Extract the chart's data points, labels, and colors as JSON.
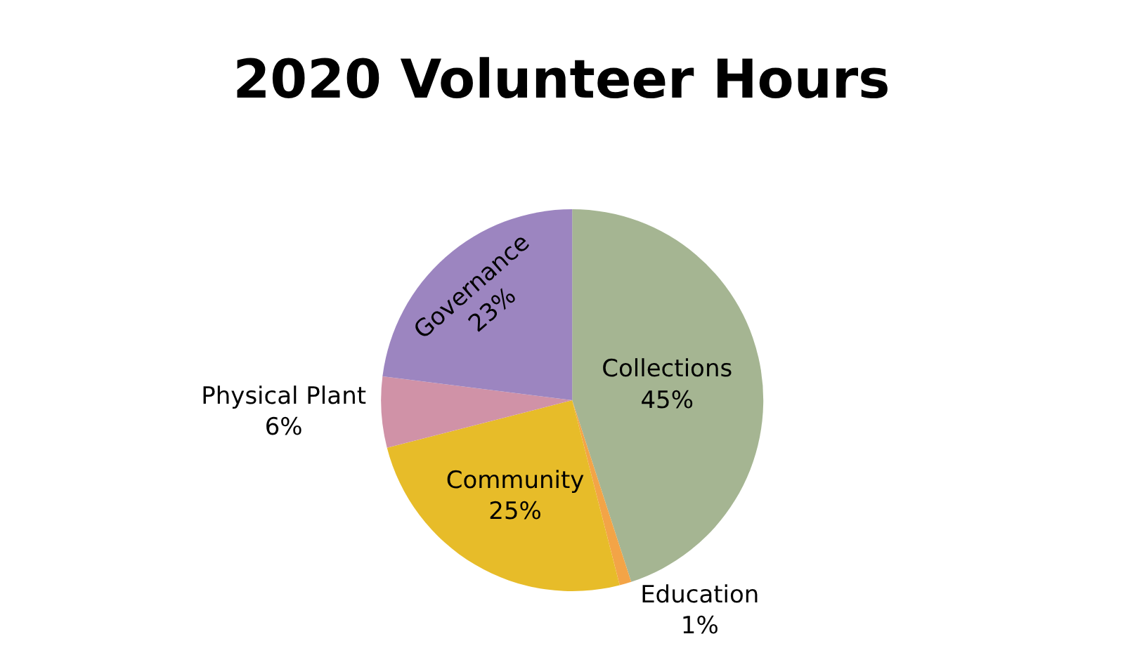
{
  "chart_data": {
    "type": "pie",
    "title": "2020 Volunteer Hours",
    "categories": [
      "Collections",
      "Education",
      "Community",
      "Physical Plant",
      "Governance"
    ],
    "values": [
      45,
      1,
      25,
      6,
      23
    ],
    "value_labels": [
      "45%",
      "1%",
      "25%",
      "6%",
      "23%"
    ],
    "colors": [
      "#a5b592",
      "#f3a447",
      "#e7bc29",
      "#d092a7",
      "#9c85c0"
    ],
    "legend": false
  }
}
